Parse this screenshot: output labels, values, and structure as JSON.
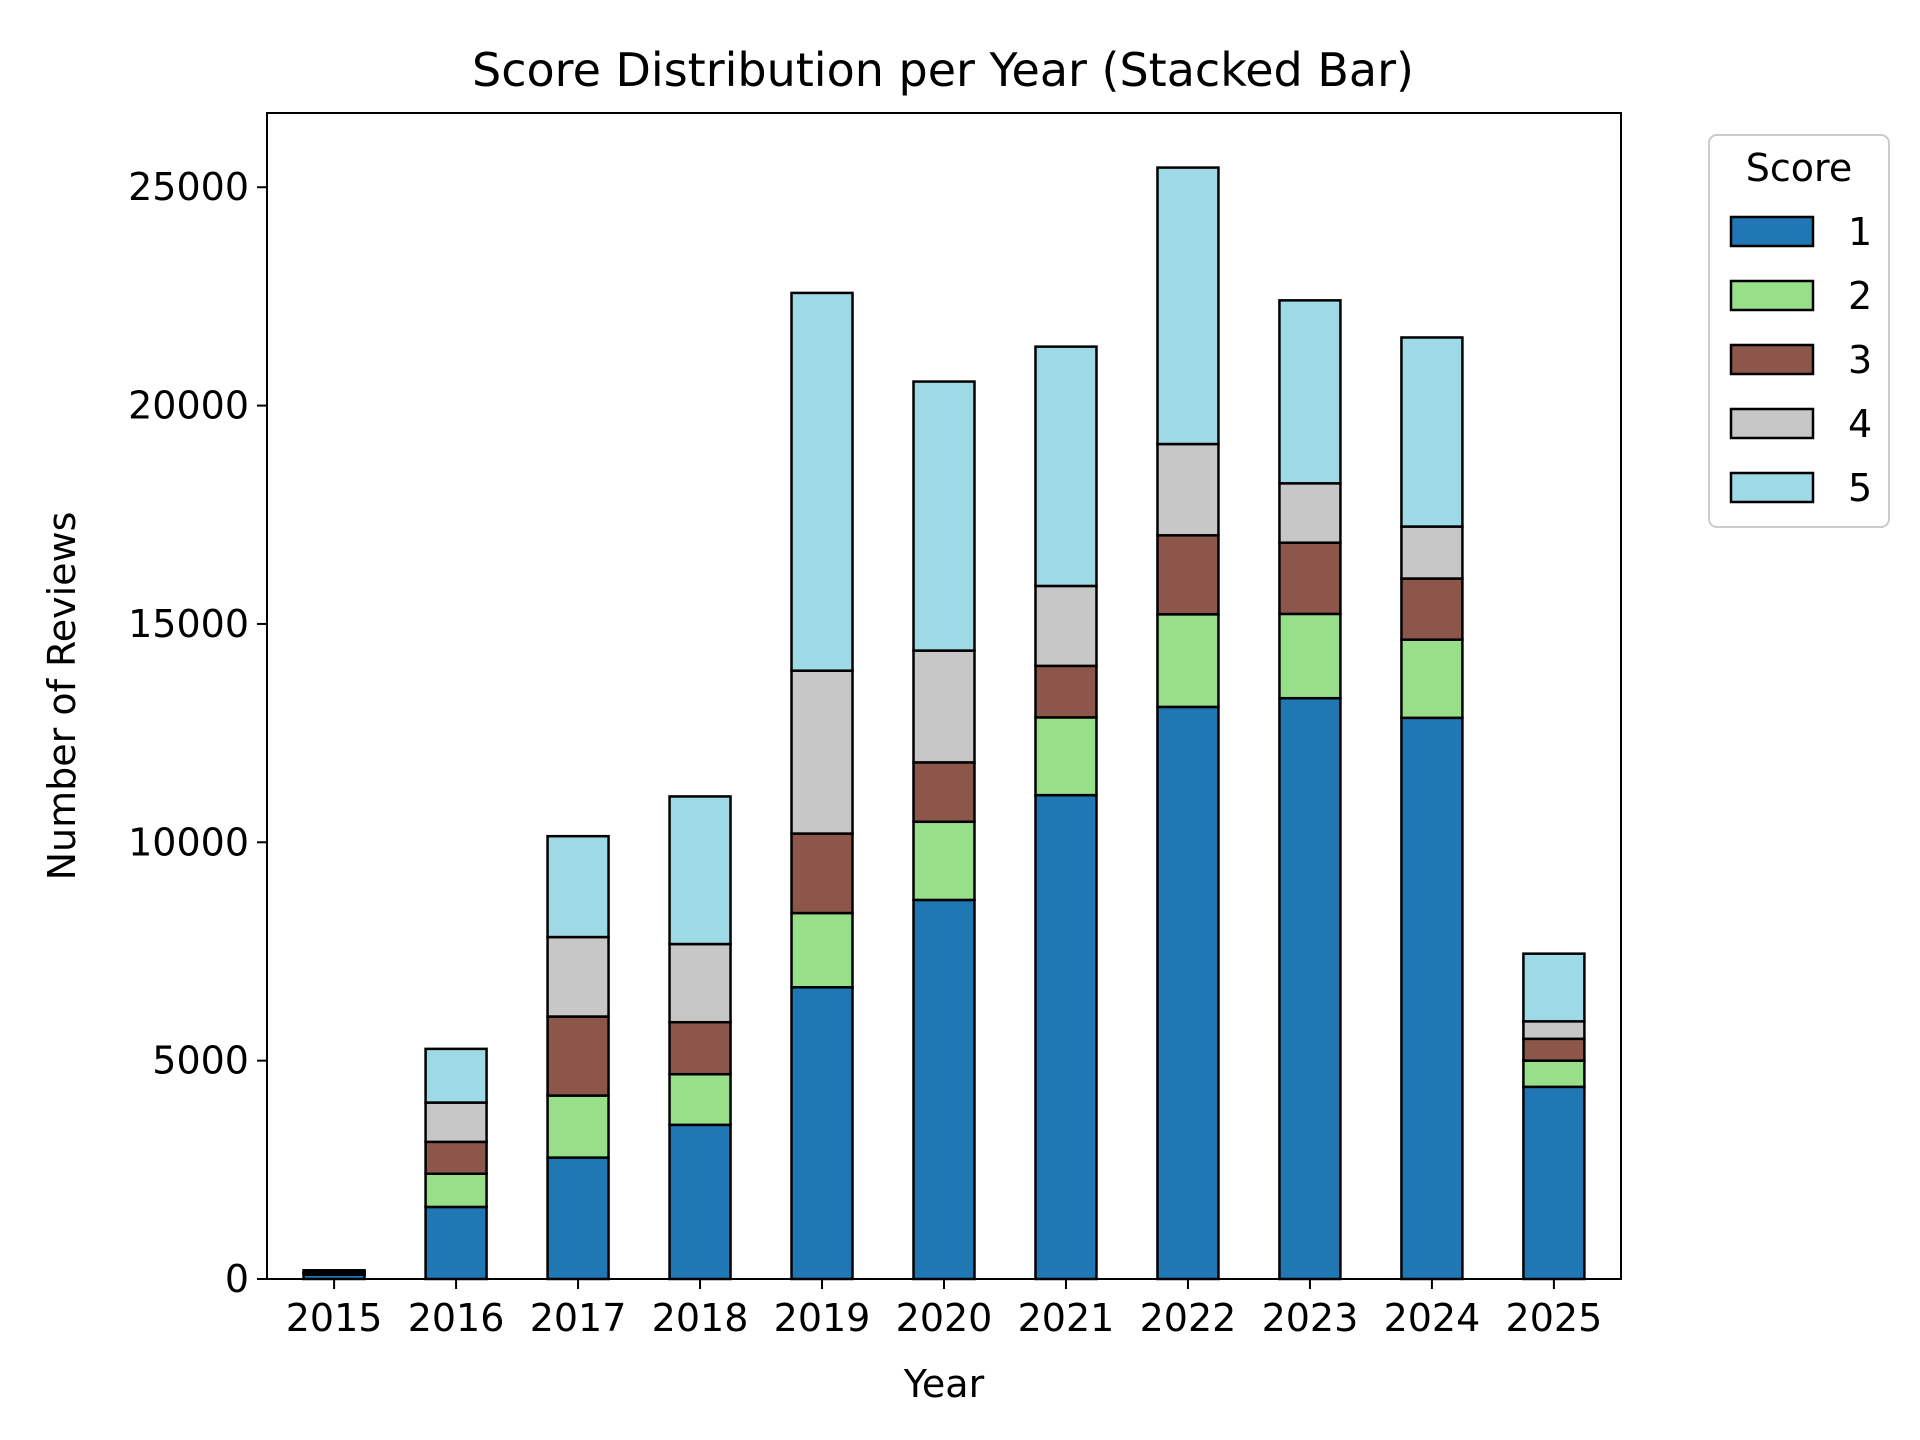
{
  "chart_data": {
    "type": "bar",
    "stacked": true,
    "title": "Score Distribution per Year (Stacked Bar)",
    "xlabel": "Year",
    "ylabel": "Number of Reviews",
    "ylim": [
      0,
      26700
    ],
    "yticks": [
      0,
      5000,
      10000,
      15000,
      20000,
      25000
    ],
    "grid": false,
    "legend": {
      "title": "Score",
      "placement": "outside-right-top"
    },
    "categories": [
      "2015",
      "2016",
      "2017",
      "2018",
      "2019",
      "2020",
      "2021",
      "2022",
      "2023",
      "2024",
      "2025"
    ],
    "series": [
      {
        "name": "1",
        "color": "#1f77b4",
        "values": [
          100,
          1650,
          2780,
          3530,
          6680,
          8680,
          11080,
          13100,
          13300,
          12850,
          4400
        ]
      },
      {
        "name": "2",
        "color": "#98df8a",
        "values": [
          20,
          760,
          1420,
          1160,
          1700,
          1790,
          1780,
          2120,
          1930,
          1790,
          600
        ]
      },
      {
        "name": "3",
        "color": "#8c564b",
        "values": [
          20,
          730,
          1810,
          1190,
          1820,
          1360,
          1180,
          1810,
          1630,
          1400,
          500
        ]
      },
      {
        "name": "4",
        "color": "#c7c7c7",
        "values": [
          20,
          900,
          1820,
          1790,
          3730,
          2560,
          1830,
          2090,
          1360,
          1190,
          400
        ]
      },
      {
        "name": "5",
        "color": "#9edae5",
        "values": [
          40,
          1230,
          2310,
          3380,
          8650,
          6160,
          5480,
          6330,
          4190,
          4330,
          1550
        ]
      }
    ]
  }
}
